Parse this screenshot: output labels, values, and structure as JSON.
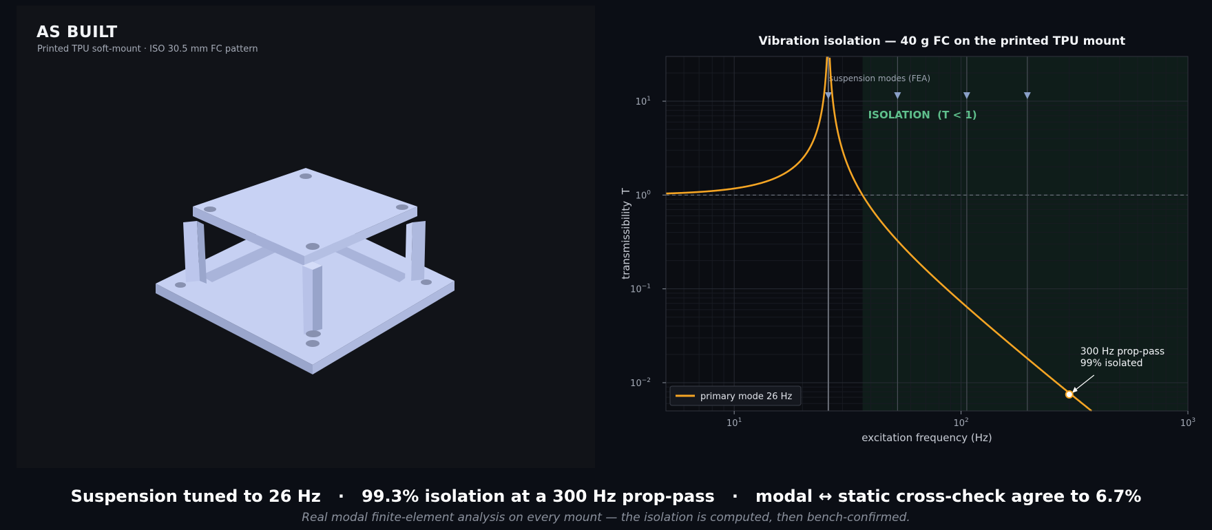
{
  "left_panel": {
    "title": "AS BUILT",
    "subtitle": "Printed TPU soft-mount · ISO 30.5 mm FC pattern"
  },
  "colors": {
    "background": "#0b0e15",
    "panel": "#111318",
    "plot_bg": "#0b0d12",
    "isolation_zone": "#0f1d1a",
    "curve": "#f5a524",
    "isolation_text": "#5fbf8c",
    "mode_marker": "#8aa0c8",
    "model": "#c3cdf0"
  },
  "chart_data": {
    "type": "line",
    "title": "Vibration isolation — 40 g FC on the printed TPU mount",
    "xlabel": "excitation frequency (Hz)",
    "ylabel": "transmissibility  T",
    "xscale": "log",
    "yscale": "log",
    "xlim": [
      5,
      1000
    ],
    "ylim": [
      0.005,
      30
    ],
    "xticks": [
      {
        "value": 10,
        "base": "10",
        "exp": "1"
      },
      {
        "value": 100,
        "base": "10",
        "exp": "2"
      },
      {
        "value": 1000,
        "base": "10",
        "exp": "3"
      }
    ],
    "yticks": [
      {
        "value": 0.01,
        "base": "10",
        "exp": "−2"
      },
      {
        "value": 0.1,
        "base": "10",
        "exp": "−1"
      },
      {
        "value": 1,
        "base": "10",
        "exp": "0"
      },
      {
        "value": 10,
        "base": "10",
        "exp": "1"
      }
    ],
    "grid": true,
    "series": [
      {
        "name": "primary mode 26 Hz",
        "natural_frequency_hz": 26,
        "damping_ratio": 0.01,
        "color": "#f5a524"
      }
    ],
    "reference_line": {
      "y": 1,
      "style": "dashed"
    },
    "isolation_region": {
      "x_start": 36.8,
      "x_end": 1000,
      "label": "ISOLATION  (T < 1)"
    },
    "suspension_modes": {
      "label": "suspension modes (FEA)",
      "frequencies_hz": [
        26,
        52.5,
        106,
        196
      ]
    },
    "annotation": {
      "x": 300,
      "y": 0.0075,
      "line1": "300 Hz prop-pass",
      "line2": "99% isolated"
    },
    "legend": {
      "position": "lower-left"
    }
  },
  "footer": {
    "headline": "Suspension tuned to 26 Hz   ·   99.3% isolation at a 300 Hz prop-pass   ·   modal ↔ static cross-check agree to 6.7%",
    "caption": "Real modal finite-element analysis on every mount — the isolation is computed, then bench-confirmed."
  }
}
